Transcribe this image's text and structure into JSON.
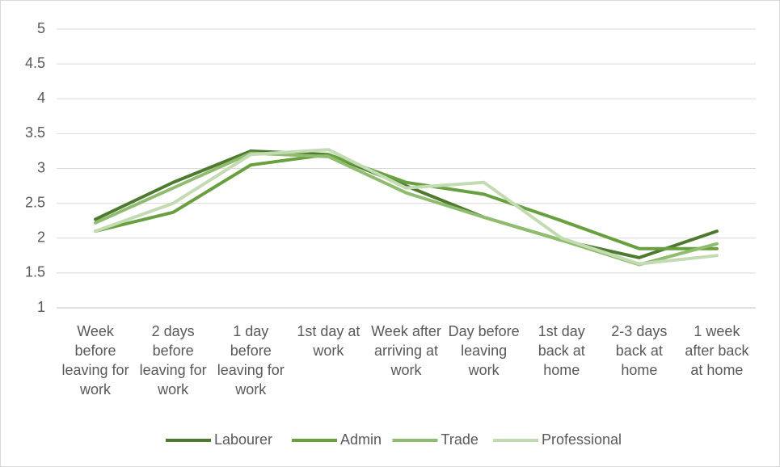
{
  "chart_data": {
    "type": "line",
    "categories": [
      "Week before leaving for work",
      "2 days before leaving for work",
      "1 day before leaving for work",
      "1st day at work",
      "Week after arriving at work",
      "Day before leaving work",
      "1st day back at home",
      "2-3 days back at home",
      "1 week after back at home"
    ],
    "series": [
      {
        "name": "Labourer",
        "color": "#4e7a2f",
        "values": [
          2.27,
          2.8,
          3.25,
          3.2,
          2.75,
          2.3,
          1.97,
          1.72,
          2.1
        ]
      },
      {
        "name": "Admin",
        "color": "#68a040",
        "values": [
          2.1,
          2.37,
          3.05,
          3.2,
          2.8,
          2.63,
          2.25,
          1.85,
          1.85
        ]
      },
      {
        "name": "Trade",
        "color": "#8fbc6f",
        "values": [
          2.22,
          2.72,
          3.22,
          3.17,
          2.65,
          2.3,
          1.97,
          1.62,
          1.92
        ]
      },
      {
        "name": "Professional",
        "color": "#c3dbb2",
        "values": [
          2.1,
          2.5,
          3.2,
          3.27,
          2.72,
          2.8,
          2.0,
          1.63,
          1.75
        ]
      }
    ],
    "ylim": [
      1,
      5
    ],
    "yticks": [
      1,
      1.5,
      2,
      2.5,
      3,
      3.5,
      4,
      4.5,
      5
    ],
    "grid": true,
    "legend": "bottom"
  }
}
